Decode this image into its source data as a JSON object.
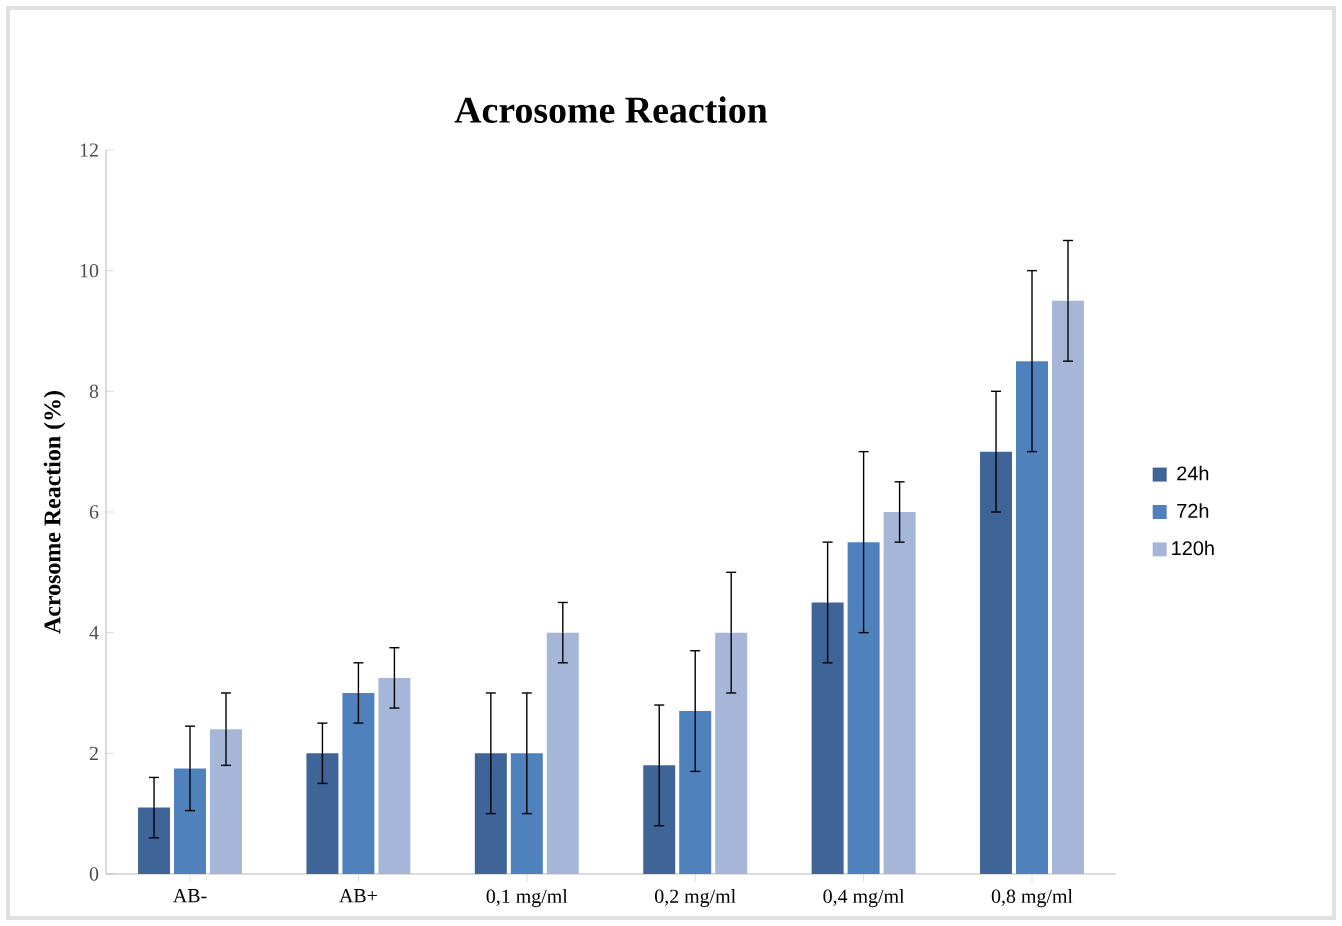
{
  "chart_data": {
    "type": "bar",
    "title": "Acrosome Reaction",
    "ylabel": "Acrosome Reaction (%)",
    "categories": [
      "AB-",
      "AB+",
      "0,1 mg/ml",
      "0,2 mg/ml",
      "0,4 mg/ml",
      "0,8 mg/ml"
    ],
    "series": [
      {
        "name": "24h",
        "color": "#3f6498",
        "values": [
          1.1,
          2.0,
          2.0,
          1.8,
          4.5,
          7.0
        ],
        "errors": [
          0.5,
          0.5,
          1.0,
          1.0,
          1.0,
          1.0
        ]
      },
      {
        "name": "72h",
        "color": "#4f81bd",
        "values": [
          1.75,
          3.0,
          2.0,
          2.7,
          5.5,
          8.5
        ],
        "errors": [
          0.7,
          0.5,
          1.0,
          1.0,
          1.5,
          1.5
        ]
      },
      {
        "name": "120h",
        "color": "#a5b6d8",
        "values": [
          2.4,
          3.25,
          4.0,
          4.0,
          6.0,
          9.5
        ],
        "errors": [
          0.6,
          0.5,
          0.5,
          1.0,
          0.5,
          1.0
        ]
      }
    ],
    "ylim": [
      0,
      12
    ],
    "yticks": [
      0,
      2,
      4,
      6,
      8,
      10,
      12
    ],
    "grid": false,
    "legend": "right"
  }
}
